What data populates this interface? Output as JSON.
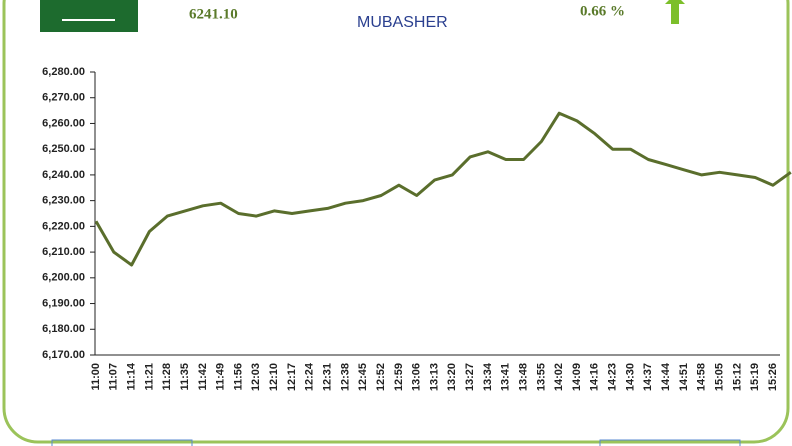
{
  "header": {
    "index": "6241.10",
    "logo": "MUBASHER",
    "change": "0.66 %"
  },
  "chart_data": {
    "type": "line",
    "color": "#5a6e2c",
    "categories": [
      "11:00",
      "11:07",
      "11:14",
      "11:21",
      "11:28",
      "11:35",
      "11:42",
      "11:49",
      "11:56",
      "12:03",
      "12:10",
      "12:17",
      "12:24",
      "12:31",
      "12:38",
      "12:45",
      "12:52",
      "12:59",
      "13:06",
      "13:13",
      "13:20",
      "13:27",
      "13:34",
      "13:41",
      "13:48",
      "13:55",
      "14:02",
      "14:09",
      "14:16",
      "14:23",
      "14:30",
      "14:37",
      "14:44",
      "14:51",
      "14:58",
      "15:05",
      "15:12",
      "15:19",
      "15:26",
      null
    ],
    "values": [
      6222,
      6210,
      6205,
      6218,
      6224,
      6226,
      6228,
      6229,
      6225,
      6224,
      6226,
      6225,
      6226,
      6227,
      6229,
      6230,
      6232,
      6236,
      6232,
      6238,
      6240,
      6247,
      6249,
      6246,
      6246,
      6253,
      6264,
      6261,
      6256,
      6250,
      6250,
      6246,
      6244,
      6242,
      6240,
      6241,
      6240,
      6239,
      6236,
      6241
    ],
    "ylim": [
      6170,
      6280
    ],
    "yticks": [
      {
        "value": 6170,
        "label": "6,170.00"
      },
      {
        "value": 6180,
        "label": "6,180.00"
      },
      {
        "value": 6190,
        "label": "6,190.00"
      },
      {
        "value": 6200,
        "label": "6,200.00"
      },
      {
        "value": 6210,
        "label": "6,210.00"
      },
      {
        "value": 6220,
        "label": "6,220.00"
      },
      {
        "value": 6230,
        "label": "6,230.00"
      },
      {
        "value": 6240,
        "label": "6,240.00"
      },
      {
        "value": 6250,
        "label": "6,250.00"
      },
      {
        "value": 6260,
        "label": "6,260.00"
      },
      {
        "value": 6270,
        "label": "6,270.00"
      },
      {
        "value": 6280,
        "label": "6,280.00"
      }
    ]
  }
}
